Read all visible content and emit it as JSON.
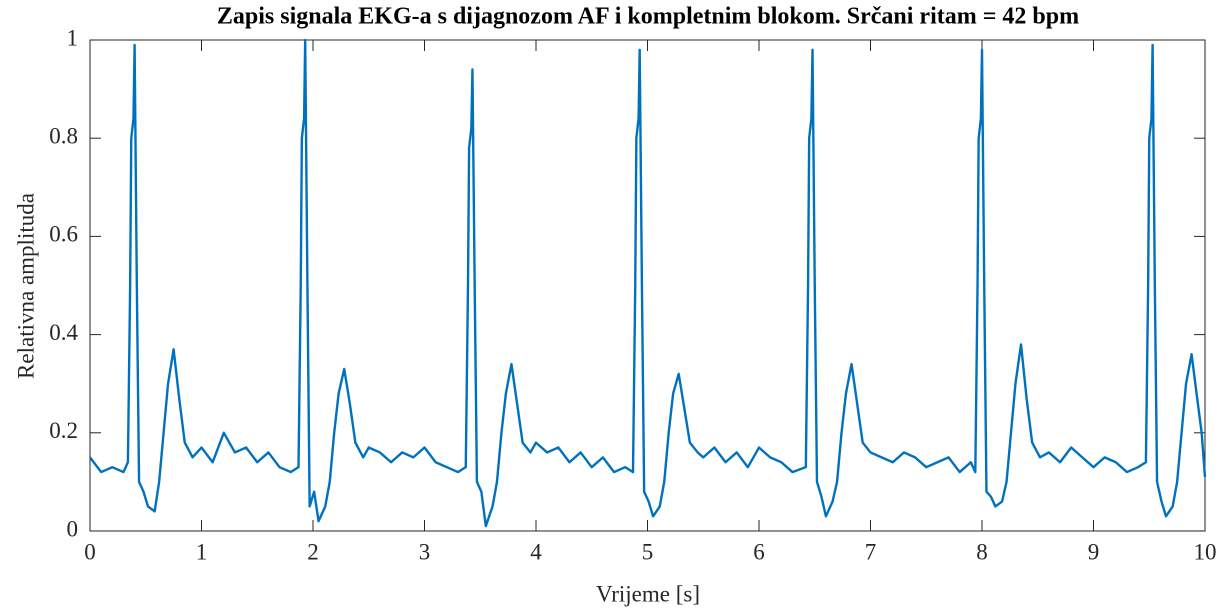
{
  "chart_data": {
    "type": "line",
    "title": "Zapis signala EKG-a s dijagnozom AF i kompletnim blokom. Srčani ritam = 42 bpm",
    "x_label": "Vrijeme [s]",
    "y_label": "Relativna amplituda",
    "xlim": [
      0,
      10
    ],
    "ylim": [
      0,
      1
    ],
    "xticks": [
      0,
      1,
      2,
      3,
      4,
      5,
      6,
      7,
      8,
      9,
      10
    ],
    "yticks": [
      0,
      0.2,
      0.4,
      0.6,
      0.8,
      1
    ],
    "box": true,
    "x": [
      0,
      0.1,
      0.2,
      0.3,
      0.34,
      0.36,
      0.37,
      0.39,
      0.4,
      0.42,
      0.44,
      0.48,
      0.52,
      0.58,
      0.62,
      0.66,
      0.7,
      0.75,
      0.8,
      0.85,
      0.92,
      1.0,
      1.1,
      1.2,
      1.3,
      1.4,
      1.5,
      1.6,
      1.7,
      1.8,
      1.87,
      1.89,
      1.9,
      1.92,
      1.93,
      1.95,
      1.97,
      2.01,
      2.05,
      2.11,
      2.15,
      2.19,
      2.23,
      2.28,
      2.33,
      2.38,
      2.45,
      2.5,
      2.6,
      2.7,
      2.8,
      2.9,
      3.0,
      3.1,
      3.2,
      3.3,
      3.37,
      3.39,
      3.4,
      3.42,
      3.43,
      3.45,
      3.47,
      3.51,
      3.55,
      3.61,
      3.65,
      3.69,
      3.73,
      3.78,
      3.83,
      3.88,
      3.95,
      4.0,
      4.1,
      4.2,
      4.3,
      4.4,
      4.5,
      4.6,
      4.7,
      4.8,
      4.87,
      4.89,
      4.9,
      4.92,
      4.93,
      4.95,
      4.97,
      5.01,
      5.05,
      5.11,
      5.15,
      5.19,
      5.23,
      5.28,
      5.33,
      5.38,
      5.45,
      5.5,
      5.6,
      5.7,
      5.8,
      5.9,
      6.0,
      6.1,
      6.2,
      6.3,
      6.42,
      6.44,
      6.45,
      6.47,
      6.48,
      6.5,
      6.52,
      6.56,
      6.6,
      6.66,
      6.7,
      6.74,
      6.78,
      6.83,
      6.88,
      6.93,
      7.0,
      7.1,
      7.2,
      7.3,
      7.4,
      7.5,
      7.6,
      7.7,
      7.8,
      7.9,
      7.94,
      7.96,
      7.97,
      7.99,
      8.0,
      8.02,
      8.04,
      8.08,
      8.12,
      8.18,
      8.22,
      8.26,
      8.3,
      8.35,
      8.4,
      8.45,
      8.52,
      8.6,
      8.7,
      8.8,
      8.9,
      9.0,
      9.1,
      9.2,
      9.3,
      9.4,
      9.47,
      9.49,
      9.5,
      9.52,
      9.53,
      9.55,
      9.57,
      9.61,
      9.65,
      9.71,
      9.75,
      9.79,
      9.83,
      9.88,
      9.93,
      9.97,
      10.0
    ],
    "series": [
      {
        "color": "#0072bd",
        "values": [
          0.15,
          0.12,
          0.13,
          0.12,
          0.14,
          0.5,
          0.8,
          0.84,
          0.99,
          0.5,
          0.1,
          0.08,
          0.05,
          0.04,
          0.1,
          0.2,
          0.3,
          0.37,
          0.27,
          0.18,
          0.15,
          0.17,
          0.14,
          0.2,
          0.16,
          0.17,
          0.14,
          0.16,
          0.13,
          0.12,
          0.13,
          0.5,
          0.8,
          0.84,
          1.0,
          0.5,
          0.05,
          0.08,
          0.02,
          0.05,
          0.1,
          0.2,
          0.28,
          0.33,
          0.26,
          0.18,
          0.15,
          0.17,
          0.16,
          0.14,
          0.16,
          0.15,
          0.17,
          0.14,
          0.13,
          0.12,
          0.13,
          0.5,
          0.78,
          0.82,
          0.94,
          0.5,
          0.1,
          0.08,
          0.01,
          0.05,
          0.1,
          0.2,
          0.28,
          0.34,
          0.26,
          0.18,
          0.16,
          0.18,
          0.16,
          0.17,
          0.14,
          0.16,
          0.13,
          0.15,
          0.12,
          0.13,
          0.12,
          0.5,
          0.8,
          0.84,
          0.98,
          0.5,
          0.08,
          0.06,
          0.03,
          0.05,
          0.1,
          0.2,
          0.28,
          0.32,
          0.25,
          0.18,
          0.16,
          0.15,
          0.17,
          0.14,
          0.16,
          0.13,
          0.17,
          0.15,
          0.14,
          0.12,
          0.13,
          0.5,
          0.8,
          0.84,
          0.98,
          0.5,
          0.1,
          0.07,
          0.03,
          0.06,
          0.1,
          0.2,
          0.28,
          0.34,
          0.26,
          0.18,
          0.16,
          0.15,
          0.14,
          0.16,
          0.15,
          0.13,
          0.14,
          0.15,
          0.12,
          0.14,
          0.12,
          0.5,
          0.8,
          0.84,
          0.98,
          0.5,
          0.08,
          0.07,
          0.05,
          0.06,
          0.1,
          0.2,
          0.3,
          0.38,
          0.27,
          0.18,
          0.15,
          0.16,
          0.14,
          0.17,
          0.15,
          0.13,
          0.15,
          0.14,
          0.12,
          0.13,
          0.14,
          0.5,
          0.8,
          0.84,
          0.99,
          0.5,
          0.1,
          0.06,
          0.03,
          0.05,
          0.1,
          0.2,
          0.3,
          0.36,
          0.27,
          0.2,
          0.11
        ]
      }
    ]
  }
}
